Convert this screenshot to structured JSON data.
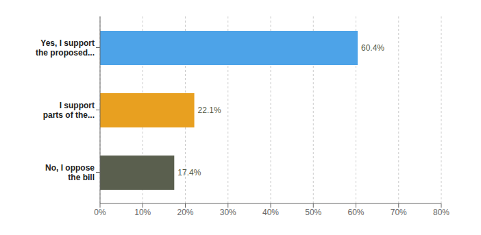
{
  "chart_data": {
    "type": "bar",
    "orientation": "horizontal",
    "categories": [
      "No, I oppose\nthe bill",
      "I support\nparts of the...",
      "Yes, I support\nthe proposed..."
    ],
    "values": [
      17.4,
      22.1,
      60.4
    ],
    "value_labels": [
      "17.4%",
      "22.1%",
      "60.4%"
    ],
    "data_labels": true,
    "colors": [
      "#5a5f4e",
      "#e8a020",
      "#4da3e8"
    ],
    "xlim": [
      0,
      80
    ],
    "xticks": [
      {
        "value": 0,
        "label": "0%"
      },
      {
        "value": 10,
        "label": "10%"
      },
      {
        "value": 20,
        "label": "20%"
      },
      {
        "value": 30,
        "label": "30%"
      },
      {
        "value": 40,
        "label": "40%"
      },
      {
        "value": 50,
        "label": "50%"
      },
      {
        "value": 60,
        "label": "60%"
      },
      {
        "value": 70,
        "label": "70%"
      },
      {
        "value": 80,
        "label": "80%"
      }
    ],
    "grid": true
  }
}
